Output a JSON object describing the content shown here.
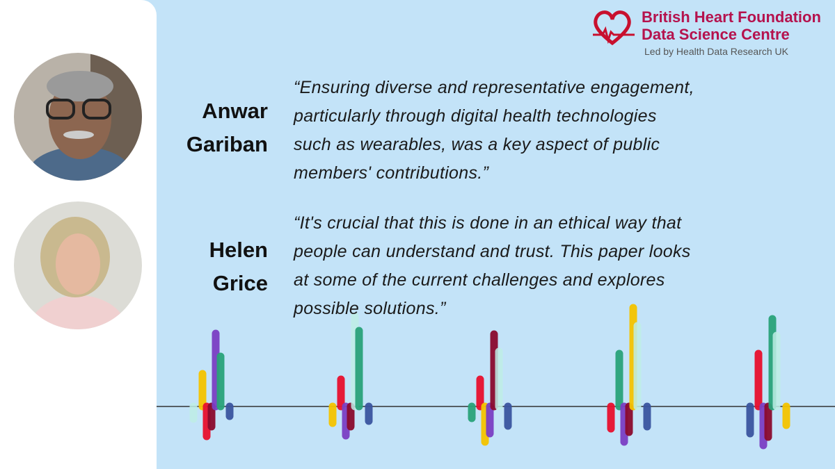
{
  "logo": {
    "title_lines": [
      "British Heart Foundation",
      "Data Science Centre"
    ],
    "subtitle": "Led by Health Data Research UK"
  },
  "quotes": [
    {
      "name_lines": [
        "Anwar",
        "Gariban"
      ],
      "quote_lines": [
        "“Ensuring diverse and representative engagement,",
        "particularly through digital health technologies",
        "such as wearables, was a key aspect of public",
        "members' contributions.”"
      ]
    },
    {
      "name_lines": [
        "Helen",
        "Grice"
      ],
      "quote_lines": [
        "“It's crucial that this is done in an ethical way that",
        "people can understand and trust. This paper looks",
        "at some of the current challenges and explores",
        "possible solutions.”"
      ]
    }
  ]
}
